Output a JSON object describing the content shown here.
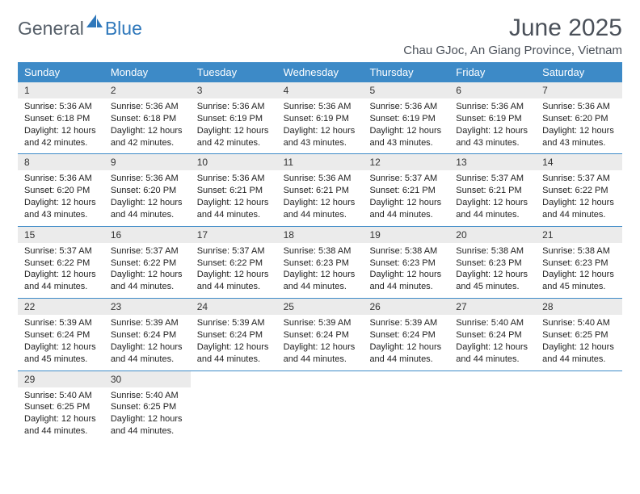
{
  "brand": {
    "text1": "General",
    "text2": "Blue",
    "color_gray": "#57606a",
    "color_blue": "#2f78bb"
  },
  "title": "June 2025",
  "location": "Chau GJoc, An Giang Province, Vietnam",
  "header_bg": "#3d8ac7",
  "daynum_bg": "#ebebeb",
  "rule_color": "#3d8ac7",
  "day_headers": [
    "Sunday",
    "Monday",
    "Tuesday",
    "Wednesday",
    "Thursday",
    "Friday",
    "Saturday"
  ],
  "weeks": [
    [
      {
        "n": "1",
        "sr": "5:36 AM",
        "ss": "6:18 PM",
        "dh": "12",
        "dm": "42"
      },
      {
        "n": "2",
        "sr": "5:36 AM",
        "ss": "6:18 PM",
        "dh": "12",
        "dm": "42"
      },
      {
        "n": "3",
        "sr": "5:36 AM",
        "ss": "6:19 PM",
        "dh": "12",
        "dm": "42"
      },
      {
        "n": "4",
        "sr": "5:36 AM",
        "ss": "6:19 PM",
        "dh": "12",
        "dm": "43"
      },
      {
        "n": "5",
        "sr": "5:36 AM",
        "ss": "6:19 PM",
        "dh": "12",
        "dm": "43"
      },
      {
        "n": "6",
        "sr": "5:36 AM",
        "ss": "6:19 PM",
        "dh": "12",
        "dm": "43"
      },
      {
        "n": "7",
        "sr": "5:36 AM",
        "ss": "6:20 PM",
        "dh": "12",
        "dm": "43"
      }
    ],
    [
      {
        "n": "8",
        "sr": "5:36 AM",
        "ss": "6:20 PM",
        "dh": "12",
        "dm": "43"
      },
      {
        "n": "9",
        "sr": "5:36 AM",
        "ss": "6:20 PM",
        "dh": "12",
        "dm": "44"
      },
      {
        "n": "10",
        "sr": "5:36 AM",
        "ss": "6:21 PM",
        "dh": "12",
        "dm": "44"
      },
      {
        "n": "11",
        "sr": "5:36 AM",
        "ss": "6:21 PM",
        "dh": "12",
        "dm": "44"
      },
      {
        "n": "12",
        "sr": "5:37 AM",
        "ss": "6:21 PM",
        "dh": "12",
        "dm": "44"
      },
      {
        "n": "13",
        "sr": "5:37 AM",
        "ss": "6:21 PM",
        "dh": "12",
        "dm": "44"
      },
      {
        "n": "14",
        "sr": "5:37 AM",
        "ss": "6:22 PM",
        "dh": "12",
        "dm": "44"
      }
    ],
    [
      {
        "n": "15",
        "sr": "5:37 AM",
        "ss": "6:22 PM",
        "dh": "12",
        "dm": "44"
      },
      {
        "n": "16",
        "sr": "5:37 AM",
        "ss": "6:22 PM",
        "dh": "12",
        "dm": "44"
      },
      {
        "n": "17",
        "sr": "5:37 AM",
        "ss": "6:22 PM",
        "dh": "12",
        "dm": "44"
      },
      {
        "n": "18",
        "sr": "5:38 AM",
        "ss": "6:23 PM",
        "dh": "12",
        "dm": "44"
      },
      {
        "n": "19",
        "sr": "5:38 AM",
        "ss": "6:23 PM",
        "dh": "12",
        "dm": "44"
      },
      {
        "n": "20",
        "sr": "5:38 AM",
        "ss": "6:23 PM",
        "dh": "12",
        "dm": "45"
      },
      {
        "n": "21",
        "sr": "5:38 AM",
        "ss": "6:23 PM",
        "dh": "12",
        "dm": "45"
      }
    ],
    [
      {
        "n": "22",
        "sr": "5:39 AM",
        "ss": "6:24 PM",
        "dh": "12",
        "dm": "45"
      },
      {
        "n": "23",
        "sr": "5:39 AM",
        "ss": "6:24 PM",
        "dh": "12",
        "dm": "44"
      },
      {
        "n": "24",
        "sr": "5:39 AM",
        "ss": "6:24 PM",
        "dh": "12",
        "dm": "44"
      },
      {
        "n": "25",
        "sr": "5:39 AM",
        "ss": "6:24 PM",
        "dh": "12",
        "dm": "44"
      },
      {
        "n": "26",
        "sr": "5:39 AM",
        "ss": "6:24 PM",
        "dh": "12",
        "dm": "44"
      },
      {
        "n": "27",
        "sr": "5:40 AM",
        "ss": "6:24 PM",
        "dh": "12",
        "dm": "44"
      },
      {
        "n": "28",
        "sr": "5:40 AM",
        "ss": "6:25 PM",
        "dh": "12",
        "dm": "44"
      }
    ],
    [
      {
        "n": "29",
        "sr": "5:40 AM",
        "ss": "6:25 PM",
        "dh": "12",
        "dm": "44"
      },
      {
        "n": "30",
        "sr": "5:40 AM",
        "ss": "6:25 PM",
        "dh": "12",
        "dm": "44"
      },
      null,
      null,
      null,
      null,
      null
    ]
  ],
  "labels": {
    "sunrise": "Sunrise:",
    "sunset": "Sunset:",
    "daylight": "Daylight:",
    "hours": "hours",
    "and": "and",
    "minutes": "minutes."
  }
}
